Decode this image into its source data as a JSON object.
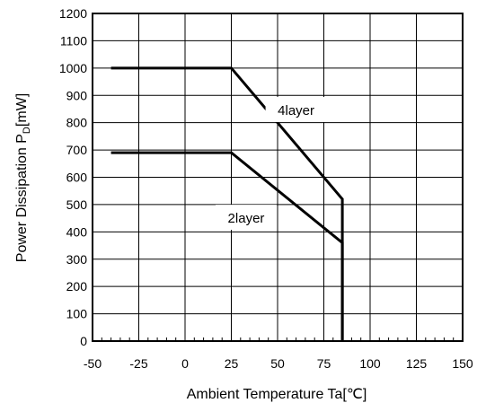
{
  "chart_data": {
    "type": "line",
    "title": "",
    "xlabel": "Ambient Temperature   Ta[℃]",
    "ylabel_main": "Power Dissipation   P",
    "ylabel_sub": "D",
    "ylabel_unit": "[mW]",
    "xlim": [
      -50,
      150
    ],
    "ylim": [
      0,
      1200
    ],
    "xticks": [
      -50,
      -25,
      0,
      25,
      50,
      75,
      100,
      125,
      150
    ],
    "yticks": [
      0,
      100,
      200,
      300,
      400,
      500,
      600,
      700,
      800,
      900,
      1000,
      1100,
      1200
    ],
    "grid": true,
    "series": [
      {
        "name": "4layer",
        "x": [
          -40,
          25,
          85,
          85
        ],
        "y": [
          1000,
          1000,
          520,
          0
        ]
      },
      {
        "name": "2layer",
        "x": [
          -40,
          25,
          85,
          85
        ],
        "y": [
          690,
          690,
          360,
          0
        ]
      }
    ],
    "annotations": [
      {
        "text": "4layer",
        "x": 60,
        "y": 845
      },
      {
        "text": "2layer",
        "x": 33,
        "y": 450
      }
    ]
  }
}
